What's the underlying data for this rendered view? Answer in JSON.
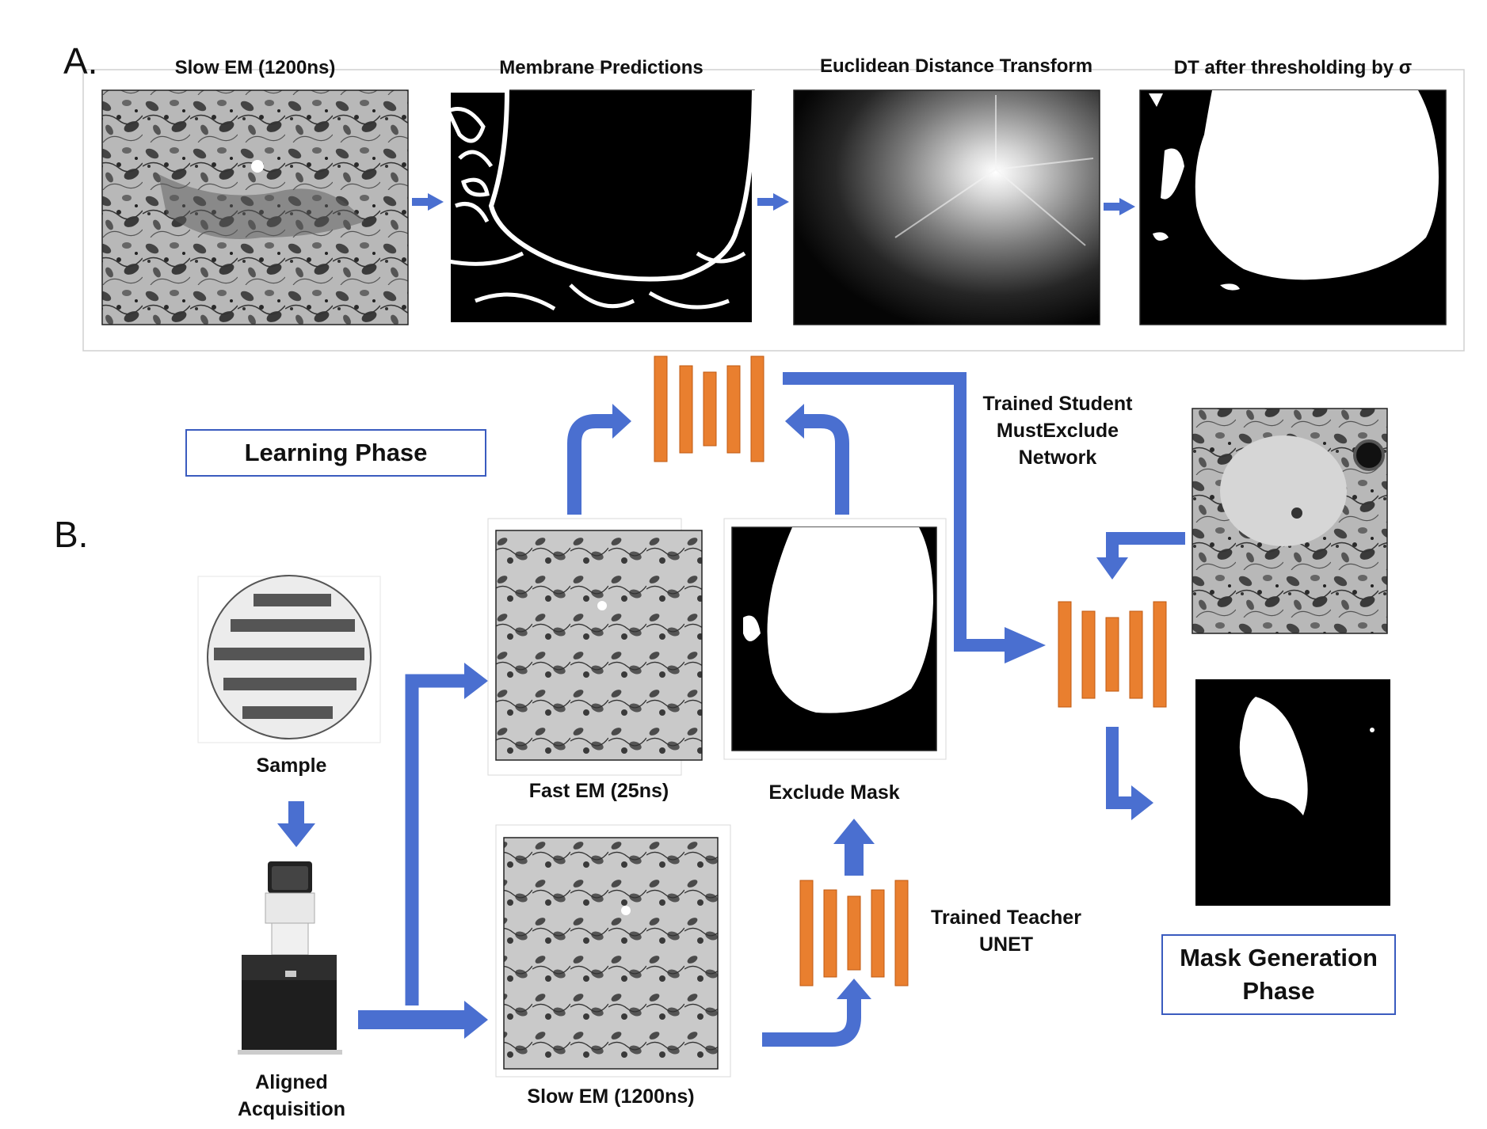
{
  "panel_a": {
    "letter": "A.",
    "titles": {
      "slow_em": "Slow EM (1200ns)",
      "membrane": "Membrane Predictions",
      "edt": "Euclidean Distance Transform",
      "dt_thresh": "DT after thresholding by σ"
    }
  },
  "panel_b": {
    "letter": "B.",
    "learning_phase": "Learning Phase",
    "sample_label": "Sample",
    "aligned_label_1": "Aligned",
    "aligned_label_2": "Acquisition",
    "fast_em_label": "Fast EM (25ns)",
    "exclude_mask_label": "Exclude Mask",
    "slow_em_label": "Slow EM (1200ns)",
    "teacher_label_1": "Trained Teacher",
    "teacher_label_2": "UNET",
    "student_label_1": "Trained Student",
    "student_label_2": "MustExclude",
    "student_label_3": "Network",
    "mask_generation_1": "Mask Generation",
    "mask_generation_2": "Phase"
  },
  "colors": {
    "arrow": "#4a6fd0",
    "unet": "#e97f2f",
    "box_border": "#3a5bbf"
  }
}
